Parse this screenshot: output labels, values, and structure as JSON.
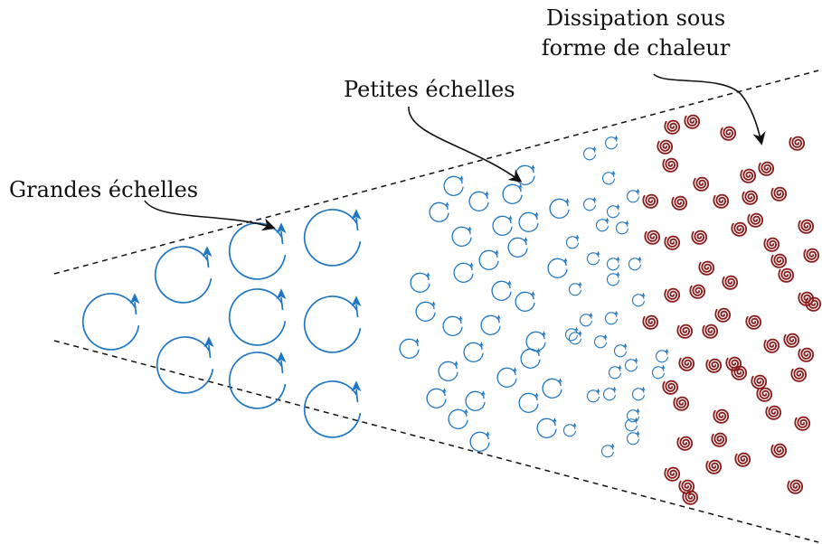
{
  "labels": {
    "large_scales": "Grandes échelles",
    "small_scales": "Petites échelles",
    "dissipation_line1": "Dissipation sous",
    "dissipation_line2": "forme de chaleur"
  },
  "colors": {
    "eddy": "#1f77c4",
    "dissipation": "#8b1a1a",
    "boundary": "#111111"
  },
  "icons": {
    "eddy": "circular-arrow-icon",
    "dissipation": "spiral-icon",
    "pointer": "curved-arrow"
  }
}
